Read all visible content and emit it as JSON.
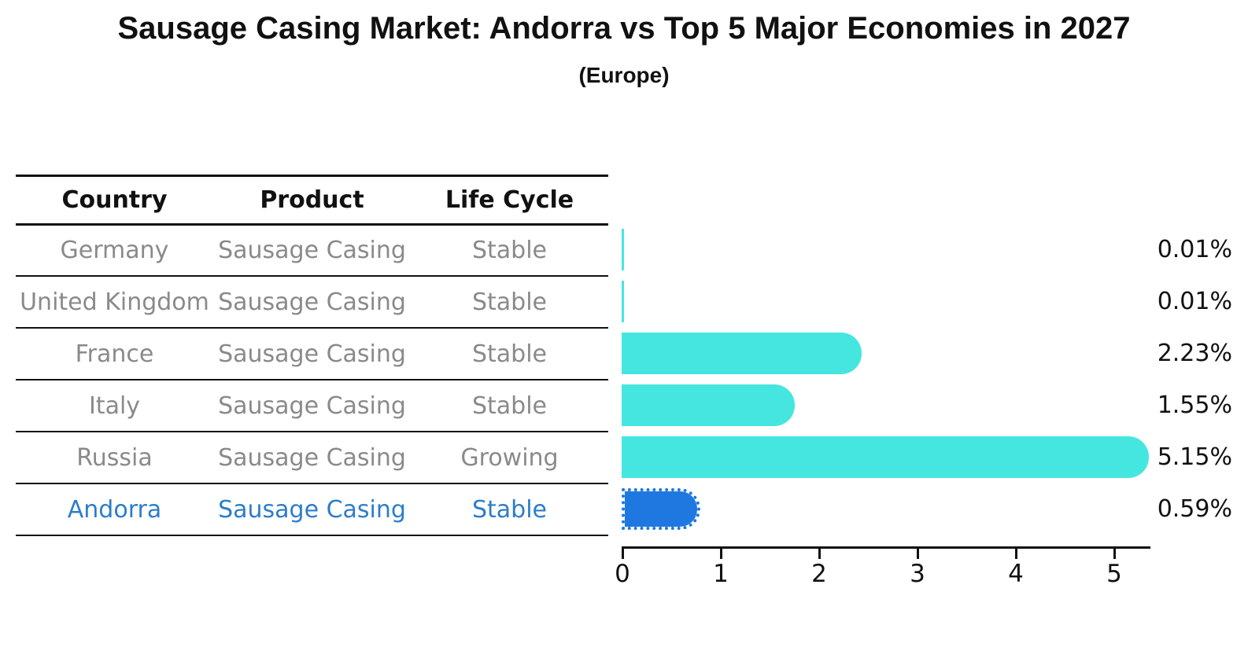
{
  "page": {
    "title": "Sausage Casing Market: Andorra vs Top 5 Major Economies in 2027",
    "subtitle": "(Europe)"
  },
  "table": {
    "headers": [
      "Country",
      "Product",
      "Life Cycle"
    ],
    "rows": [
      {
        "country": "Germany",
        "product": "Sausage Casing",
        "life_cycle": "Stable"
      },
      {
        "country": "United Kingdom",
        "product": "Sausage Casing",
        "life_cycle": "Stable"
      },
      {
        "country": "France",
        "product": "Sausage Casing",
        "life_cycle": "Stable"
      },
      {
        "country": "Italy",
        "product": "Sausage Casing",
        "life_cycle": "Stable"
      },
      {
        "country": "Russia",
        "product": "Sausage Casing",
        "life_cycle": "Growing"
      },
      {
        "country": "Andorra",
        "product": "Sausage Casing",
        "life_cycle": "Stable"
      }
    ],
    "highlighted_row": "Andorra"
  },
  "chart_data": {
    "type": "bar",
    "orientation": "horizontal",
    "title": "Sausage Casing Market: Andorra vs Top 5 Major Economies in 2027",
    "subtitle": "(Europe)",
    "categories": [
      "Germany",
      "United Kingdom",
      "France",
      "Italy",
      "Russia",
      "Andorra"
    ],
    "values": [
      0.01,
      0.01,
      2.23,
      1.55,
      5.15,
      0.59
    ],
    "value_labels": [
      "0.01%",
      "0.01%",
      "2.23%",
      "1.55%",
      "5.15%",
      "0.59%"
    ],
    "units": "percent",
    "xlim": [
      0,
      5.4
    ],
    "x_ticks": [
      "0",
      "1",
      "2",
      "3",
      "4",
      "5"
    ],
    "grid": false,
    "legend": false,
    "highlight_category": "Andorra"
  },
  "colors": {
    "bar_default": "#45e6e0",
    "bar_highlight": "#1f78e0",
    "highlight_text": "#2d7dc8",
    "row_text": "#8a8a8a",
    "heading_text": "#111111",
    "axis": "#111111"
  }
}
